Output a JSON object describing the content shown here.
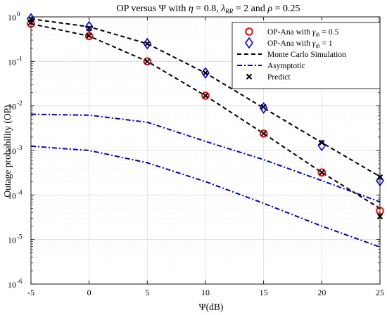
{
  "chart_data": {
    "type": "line",
    "title": "OP versus Ψ with η = 0.8, λ_RR = 2 and ρ = 0.25",
    "title_parts": {
      "prefix": "OP versus Ψ with ",
      "eta": "η",
      "eta_value": " = 0.8, ",
      "lambda": "λ",
      "lambda_sub": "RR",
      "lambda_value": " = 2 and ",
      "rho": "ρ",
      "rho_value": " = 0.25"
    },
    "xlabel": "Ψ(dB)",
    "ylabel": "Outage probability (OP)",
    "x_ticks": [
      -5,
      0,
      5,
      10,
      15,
      20,
      25
    ],
    "y_scale": "log",
    "y_tick_exponents": [
      0,
      -1,
      -2,
      -3,
      -4,
      -5,
      -6
    ],
    "y_tick_base": "10",
    "xlim": [
      -5,
      25
    ],
    "ylim": [
      1e-06,
      1
    ],
    "grid": true,
    "legend_position": "top-right",
    "x": [
      -5,
      0,
      5,
      10,
      15,
      20,
      25
    ],
    "series": [
      {
        "name": "OP-Ana with γth = 0.5",
        "label_prefix": "OP-Ana with ",
        "label_sym": "γ",
        "label_sub": "th",
        "label_suffix": " = 0.5",
        "marker": "circle",
        "color": "#ff0000",
        "values": [
          0.7,
          0.37,
          0.1,
          0.017,
          0.0024,
          0.00032,
          4.4e-05
        ]
      },
      {
        "name": "OP-Ana with γth = 1",
        "label_prefix": "OP-Ana with ",
        "label_sym": "γ",
        "label_sub": "th",
        "label_suffix": " = 1",
        "marker": "diamond",
        "color": "#0000ff",
        "values": [
          0.9,
          0.6,
          0.25,
          0.055,
          0.009,
          0.0013,
          0.00021
        ]
      },
      {
        "name": "Monte Carlo Simulation",
        "line": "dashed",
        "color": "#000000",
        "curves": [
          [
            0.7,
            0.37,
            0.1,
            0.017,
            0.0024,
            0.00032,
            5e-05
          ],
          [
            0.9,
            0.6,
            0.25,
            0.055,
            0.009,
            0.0015,
            0.00026
          ]
        ]
      },
      {
        "name": "Asymptotic",
        "line": "dashdot",
        "color": "#0000cc",
        "curves": [
          [
            0.0065,
            0.0062,
            0.0043,
            0.0016,
            0.00062,
            0.00021,
            7e-05
          ],
          [
            0.00125,
            0.001,
            0.00053,
            0.0002,
            6.5e-05,
            2e-05,
            6.8e-06
          ]
        ]
      },
      {
        "name": "Predict",
        "marker": "x",
        "color": "#000000",
        "curves": [
          [
            0.75,
            0.38,
            0.1,
            0.017,
            0.0024,
            0.00032,
            3.3e-05
          ],
          [
            0.88,
            0.55,
            0.25,
            0.055,
            0.0095,
            0.0015,
            0.00025
          ]
        ]
      }
    ]
  }
}
